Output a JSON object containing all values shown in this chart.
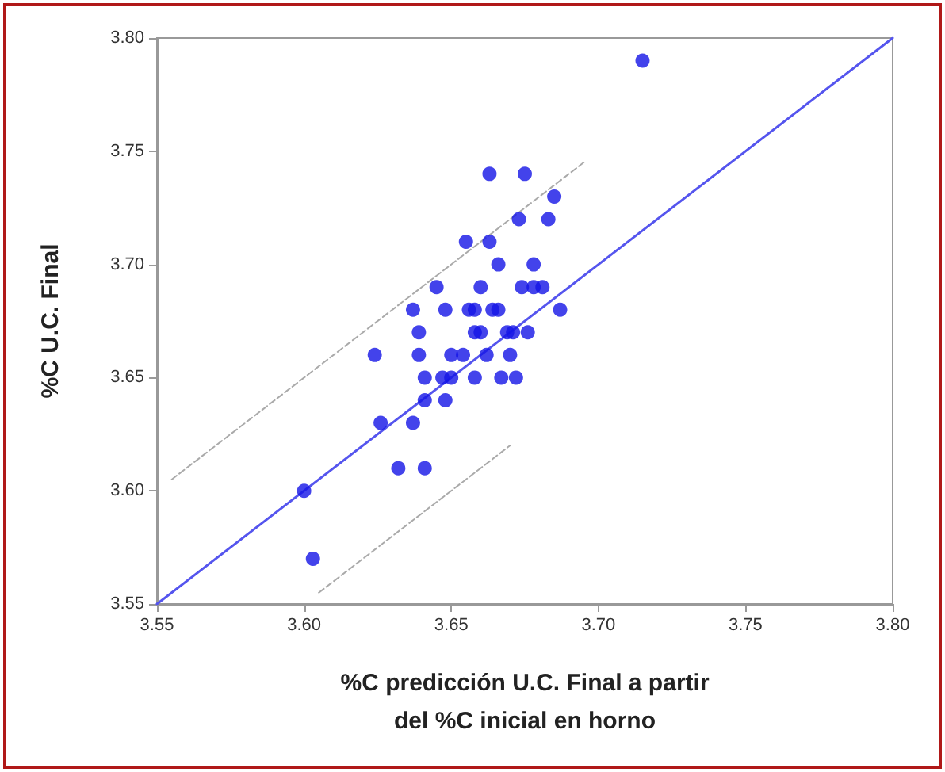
{
  "chart_data": {
    "type": "scatter",
    "xlabel": "%C predicción U.C. Final a partir\ndel %C inicial en horno",
    "ylabel": "%C U.C. Final",
    "xlim": [
      3.55,
      3.8
    ],
    "ylim": [
      3.55,
      3.8
    ],
    "xticks": [
      {
        "value": 3.55,
        "label": "3.55"
      },
      {
        "value": 3.6,
        "label": "3.60"
      },
      {
        "value": 3.65,
        "label": "3.65"
      },
      {
        "value": 3.7,
        "label": "3.70"
      },
      {
        "value": 3.75,
        "label": "3.75"
      },
      {
        "value": 3.8,
        "label": "3.80"
      }
    ],
    "yticks": [
      {
        "value": 3.55,
        "label": "3.55"
      },
      {
        "value": 3.6,
        "label": "3.60"
      },
      {
        "value": 3.65,
        "label": "3.65"
      },
      {
        "value": 3.7,
        "label": "3.70"
      },
      {
        "value": 3.75,
        "label": "3.75"
      },
      {
        "value": 3.8,
        "label": "3.80"
      }
    ],
    "grid": false,
    "series": [
      {
        "type": "scatter",
        "marker": "circle",
        "color": "#1414e6",
        "x": [
          3.715,
          3.663,
          3.675,
          3.685,
          3.673,
          3.683,
          3.655,
          3.663,
          3.666,
          3.678,
          3.645,
          3.66,
          3.674,
          3.678,
          3.681,
          3.637,
          3.648,
          3.656,
          3.658,
          3.664,
          3.666,
          3.687,
          3.639,
          3.658,
          3.66,
          3.669,
          3.671,
          3.676,
          3.624,
          3.639,
          3.65,
          3.654,
          3.662,
          3.67,
          3.641,
          3.647,
          3.65,
          3.658,
          3.667,
          3.672,
          3.641,
          3.648,
          3.626,
          3.637,
          3.632,
          3.641,
          3.6,
          3.603
        ],
        "values": [
          3.79,
          3.74,
          3.74,
          3.73,
          3.72,
          3.72,
          3.71,
          3.71,
          3.7,
          3.7,
          3.69,
          3.69,
          3.69,
          3.69,
          3.69,
          3.68,
          3.68,
          3.68,
          3.68,
          3.68,
          3.68,
          3.68,
          3.67,
          3.67,
          3.67,
          3.67,
          3.67,
          3.67,
          3.66,
          3.66,
          3.66,
          3.66,
          3.66,
          3.66,
          3.65,
          3.65,
          3.65,
          3.65,
          3.65,
          3.65,
          3.64,
          3.64,
          3.63,
          3.63,
          3.61,
          3.61,
          3.6,
          3.57
        ]
      },
      {
        "type": "line",
        "marker": "none",
        "line_style": "solid",
        "color": "#5555ee",
        "x": [
          3.55,
          3.8
        ],
        "values": [
          3.55,
          3.8
        ]
      },
      {
        "type": "line",
        "marker": "none",
        "line_style": "dashed",
        "color": "#aaaaaa",
        "x": [
          3.555,
          3.695
        ],
        "values": [
          3.605,
          3.745
        ]
      },
      {
        "type": "line",
        "marker": "none",
        "line_style": "dashed",
        "color": "#aaaaaa",
        "x": [
          3.605,
          3.67
        ],
        "values": [
          3.555,
          3.62
        ]
      }
    ]
  }
}
